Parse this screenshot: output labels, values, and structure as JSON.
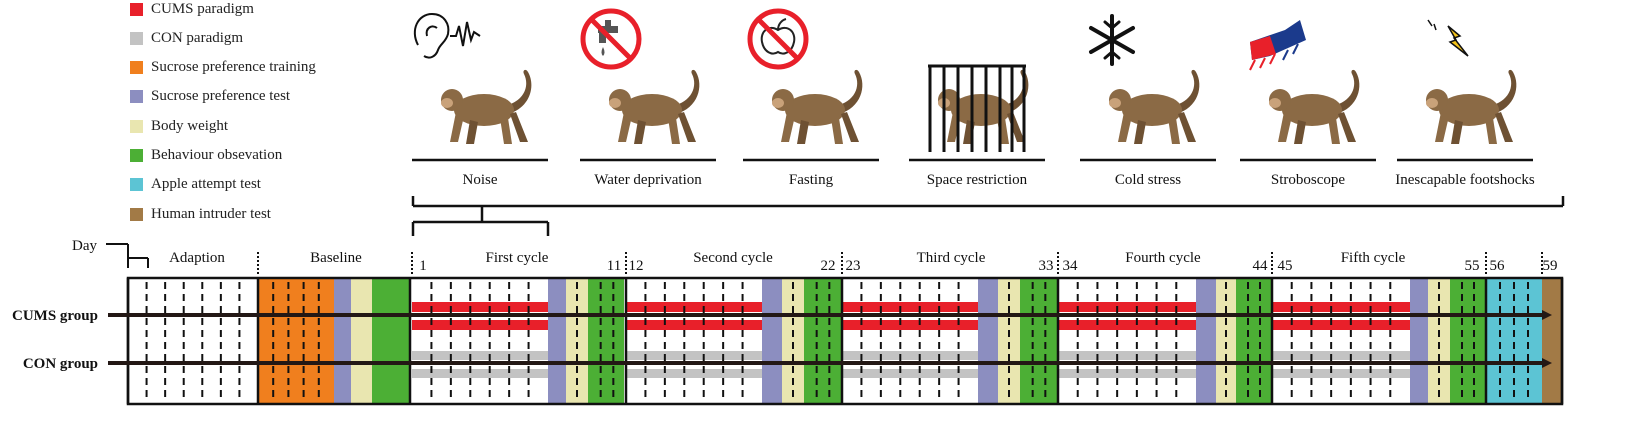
{
  "legend": [
    {
      "label": "CUMS paradigm",
      "color": "#e8202a"
    },
    {
      "label": "CON paradigm",
      "color": "#c3c3c3"
    },
    {
      "label": "Sucrose preference training",
      "color": "#f07f1e"
    },
    {
      "label": "Sucrose preference test",
      "color": "#8c8ec0"
    },
    {
      "label": "Body weight",
      "color": "#e9e6b0"
    },
    {
      "label": "Behaviour obsevation",
      "color": "#4caf35"
    },
    {
      "label": "Apple attempt test",
      "color": "#5cc4d4"
    },
    {
      "label": "Human intruder test",
      "color": "#a27a46"
    }
  ],
  "stressors": [
    {
      "label": "Noise",
      "icon": "ear-noise-icon"
    },
    {
      "label": "Water deprivation",
      "icon": "no-water-icon"
    },
    {
      "label": "Fasting",
      "icon": "no-apple-icon"
    },
    {
      "label": "Space restriction",
      "icon": "cage-icon"
    },
    {
      "label": "Cold stress",
      "icon": "snowflake-icon"
    },
    {
      "label": "Stroboscope",
      "icon": "strobe-light-icon"
    },
    {
      "label": "Inescapable footshocks",
      "icon": "lightning-icon"
    }
  ],
  "timeline": {
    "day_label": "Day",
    "phases": [
      "Adaption",
      "Baseline",
      "First cycle",
      "Second cycle",
      "Third cycle",
      "Fourth cycle",
      "Fifth cycle"
    ],
    "day_markers": [
      "1",
      "11",
      "12",
      "22",
      "23",
      "33",
      "34",
      "44",
      "45",
      "55",
      "56",
      "59"
    ],
    "groups": [
      "CUMS group",
      "CON group"
    ]
  }
}
